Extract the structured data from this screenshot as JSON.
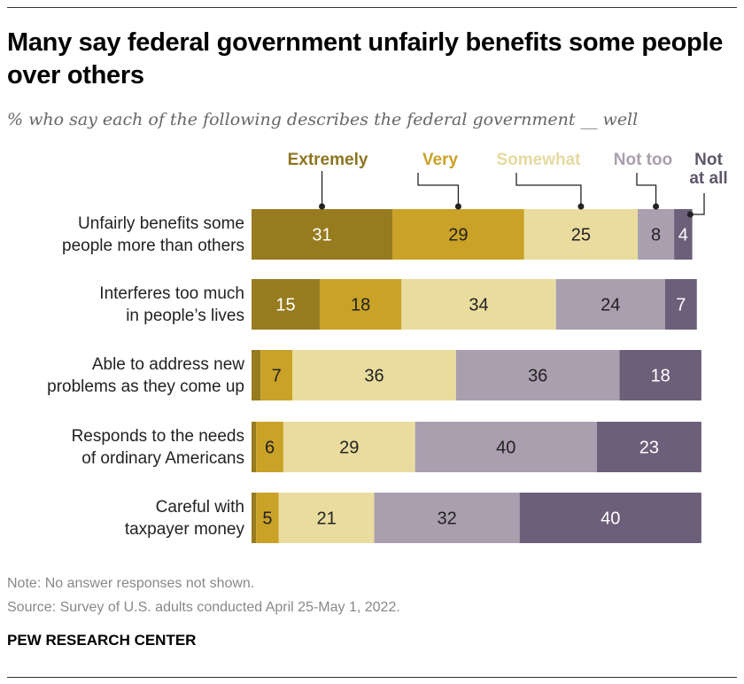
{
  "title": "Many say federal government unfairly benefits some people over others",
  "subtitle": "% who say each of the following describes the federal government __ well",
  "note": "Note: No answer responses not shown.",
  "source": "Source: Survey of U.S. adults conducted April 25-May 1, 2022.",
  "brand": "PEW RESEARCH CENTER",
  "chart_data": {
    "type": "bar",
    "orientation": "horizontal",
    "stacked": true,
    "categories": [
      [
        "Unfairly benefits some",
        "people more than others"
      ],
      [
        "Interferes too much",
        "in people’s lives"
      ],
      [
        "Able to address new",
        "problems as they come up"
      ],
      [
        "Responds to the needs",
        "of ordinary Americans"
      ],
      [
        "Careful with",
        "taxpayer money"
      ]
    ],
    "series": [
      {
        "name": "Extremely",
        "color": "#977B1F",
        "label_color": "#8E7420",
        "text_color": "#ffffff",
        "values": [
          31,
          15,
          2,
          1,
          1
        ],
        "labels": [
          "31",
          "15",
          "",
          "",
          ""
        ]
      },
      {
        "name": "Very",
        "color": "#C9A227",
        "label_color": "#C9A227",
        "text_color": "#222222",
        "values": [
          29,
          18,
          7,
          6,
          5
        ],
        "labels": [
          "29",
          "18",
          "7",
          "6",
          "5"
        ]
      },
      {
        "name": "Somewhat",
        "color": "#E9DC9E",
        "label_color": "#E6D9A0",
        "text_color": "#222222",
        "values": [
          25,
          34,
          36,
          29,
          21
        ],
        "labels": [
          "25",
          "34",
          "36",
          "29",
          "21"
        ]
      },
      {
        "name": "Not too",
        "color": "#A99FAF",
        "label_color": "#A99FAF",
        "text_color": "#222222",
        "values": [
          8,
          24,
          36,
          40,
          32
        ],
        "labels": [
          "8",
          "24",
          "36",
          "40",
          "32"
        ]
      },
      {
        "name": "Not at all",
        "color": "#6B5F7A",
        "label_color": "#5E566A",
        "text_color": "#ffffff",
        "values": [
          4,
          7,
          18,
          23,
          40
        ],
        "labels": [
          "4",
          "7",
          "18",
          "23",
          "40"
        ]
      }
    ],
    "xlim": [
      0,
      100
    ],
    "grid": false,
    "legend": "top, labels with leader lines to first bar"
  }
}
